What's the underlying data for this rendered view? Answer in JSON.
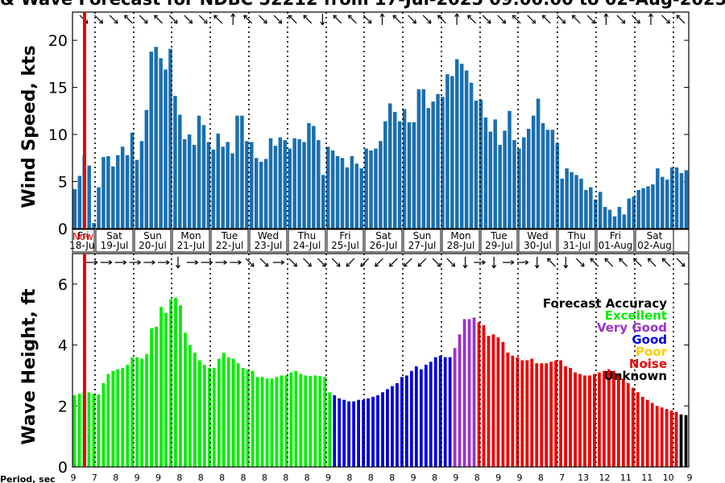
{
  "chart_data": [
    {
      "type": "bar",
      "title": "& Wave Forecast for NDBC 52212 from 17-Jul-2025 09:00:00 to 02-Aug-2025",
      "ylabel": "Wind Speed, kts",
      "ylim": [
        0,
        23
      ],
      "yticks": [
        0,
        5,
        10,
        15,
        20
      ],
      "grid": "vertical dotted lines at day boundaries",
      "now_label": "Now",
      "day_labels": [
        {
          "day": "Fri",
          "date": "18-Jul"
        },
        {
          "day": "Sat",
          "date": "19-Jul"
        },
        {
          "day": "Sun",
          "date": "20-Jul"
        },
        {
          "day": "Mon",
          "date": "21-Jul"
        },
        {
          "day": "Tue",
          "date": "22-Jul"
        },
        {
          "day": "Wed",
          "date": "23-Jul"
        },
        {
          "day": "Thu",
          "date": "24-Jul"
        },
        {
          "day": "Fri",
          "date": "25-Jul"
        },
        {
          "day": "Sat",
          "date": "26-Jul"
        },
        {
          "day": "Sun",
          "date": "27-Jul"
        },
        {
          "day": "Mon",
          "date": "28-Jul"
        },
        {
          "day": "Tue",
          "date": "29-Jul"
        },
        {
          "day": "Wed",
          "date": "30-Jul"
        },
        {
          "day": "Thu",
          "date": "31-Jul"
        },
        {
          "day": "Fri",
          "date": "01-Aug"
        },
        {
          "day": "Sat",
          "date": "02-Aug"
        }
      ],
      "values": [
        4.2,
        5.6,
        7.8,
        6.7,
        0.6,
        4.4,
        7.6,
        7.7,
        6.6,
        7.8,
        8.7,
        7.8,
        10.2,
        7.3,
        9.3,
        12.6,
        18.8,
        19.3,
        18.1,
        16.9,
        19.1,
        14.1,
        12.1,
        9.5,
        10.0,
        8.9,
        12.0,
        11.0,
        9.2,
        8.4,
        10.1,
        8.7,
        9.2,
        8.0,
        12.0,
        12.0,
        9.3,
        9.2,
        7.5,
        7.1,
        7.4,
        9.6,
        8.8,
        9.7,
        9.4,
        8.5,
        9.6,
        9.5,
        9.2,
        11.2,
        10.9,
        9.4,
        5.7,
        8.7,
        8.3,
        7.7,
        7.5,
        6.5,
        7.7,
        6.9,
        6.4,
        8.5,
        8.3,
        8.5,
        9.3,
        11.4,
        13.3,
        12.4,
        11.4,
        12.7,
        11.3,
        11.3,
        14.8,
        14.8,
        12.8,
        13.5,
        14.3,
        14.0,
        16.4,
        16.2,
        18.0,
        17.5,
        16.8,
        15.5,
        13.6,
        13.7,
        11.8,
        10.3,
        11.6,
        8.9,
        10.4,
        12.5,
        9.4,
        8.5,
        9.7,
        10.6,
        12.0,
        13.8,
        11.2,
        10.5,
        10.5,
        9.1,
        5.3,
        6.4,
        6.0,
        5.7,
        5.3,
        4.1,
        4.4,
        3.1,
        3.9,
        2.3,
        2.0,
        1.3,
        2.3,
        1.5,
        3.2,
        3.4,
        4.1,
        4.3,
        4.5,
        4.7,
        6.4,
        5.5,
        5.2,
        6.5,
        6.5,
        5.9,
        6.2
      ],
      "wind_arrow_dirs": [
        "SE",
        "SE",
        "SE",
        "NW",
        "SE",
        "NW",
        "SE",
        "SE",
        "SE",
        "NW",
        "N",
        "NW",
        "SE",
        "SE",
        "NW",
        "NW",
        "S",
        "NW",
        "NW",
        "SE",
        "N",
        "NW",
        "SE",
        "SE",
        "NW",
        "N",
        "NW",
        "SE",
        "SE",
        "NW",
        "SE",
        "NW",
        "SE",
        "NW",
        "SE",
        "N",
        "SE",
        "SE",
        "N",
        "SE",
        "NW"
      ]
    },
    {
      "type": "bar",
      "ylabel": "Wave Height, ft",
      "ylim": [
        0,
        7
      ],
      "yticks": [
        0,
        2,
        4,
        6
      ],
      "xlabel": "Period, sec",
      "period_labels": [
        "9",
        "7",
        "8",
        "9",
        "9",
        "8",
        "8",
        "8",
        "8",
        "8",
        "8",
        "8",
        "9",
        "8",
        "8",
        "8",
        "9",
        "8",
        "9",
        "8",
        "9",
        "9",
        "8",
        "7",
        "13",
        "12",
        "11",
        "11",
        "10",
        "9"
      ],
      "legend": {
        "title": "Forecast Accuracy",
        "entries": [
          {
            "label": "Excellent",
            "color": "#00ee00"
          },
          {
            "label": "Very Good",
            "color": "#9933cc"
          },
          {
            "label": "Good",
            "color": "#0000dd"
          },
          {
            "label": "Poor",
            "color": "#ffcc00"
          },
          {
            "label": "Noise",
            "color": "#ee0000"
          },
          {
            "label": "Unknown",
            "color": "#000000"
          }
        ]
      },
      "values": [
        2.35,
        2.4,
        2.45,
        2.45,
        2.4,
        2.38,
        2.75,
        3.05,
        3.15,
        3.2,
        3.25,
        3.35,
        3.6,
        3.6,
        3.55,
        3.7,
        4.55,
        4.6,
        5.25,
        5.05,
        5.5,
        5.55,
        5.3,
        4.4,
        4.0,
        3.75,
        3.5,
        3.35,
        3.25,
        3.25,
        3.55,
        3.75,
        3.6,
        3.55,
        3.4,
        3.25,
        3.2,
        3.15,
        2.95,
        2.95,
        2.9,
        2.9,
        2.95,
        3.0,
        3.0,
        3.1,
        3.15,
        3.05,
        3.0,
        2.98,
        3.0,
        2.98,
        2.95,
        2.45,
        2.35,
        2.25,
        2.2,
        2.15,
        2.15,
        2.2,
        2.2,
        2.25,
        2.3,
        2.35,
        2.45,
        2.55,
        2.65,
        2.75,
        2.95,
        3.0,
        3.15,
        3.3,
        3.2,
        3.35,
        3.45,
        3.6,
        3.65,
        3.6,
        3.6,
        3.9,
        4.35,
        4.85,
        4.85,
        4.9,
        4.75,
        4.65,
        4.3,
        4.35,
        4.25,
        4.1,
        3.75,
        3.65,
        3.6,
        3.5,
        3.5,
        3.55,
        3.4,
        3.4,
        3.4,
        3.45,
        3.5,
        3.5,
        3.3,
        3.25,
        3.1,
        3.05,
        3.0,
        3.0,
        3.05,
        3.1,
        3.15,
        3.2,
        3.15,
        3.05,
        2.9,
        2.75,
        2.6,
        2.45,
        2.3,
        2.2,
        2.1,
        2.0,
        1.95,
        1.9,
        1.85,
        1.8,
        1.72,
        1.7
      ],
      "colors": [
        "#00ee00",
        "#00ee00",
        "#00ee00",
        "#00ee00",
        "#00ee00",
        "#00ee00",
        "#00ee00",
        "#00ee00",
        "#00ee00",
        "#00ee00",
        "#00ee00",
        "#00ee00",
        "#00ee00",
        "#00ee00",
        "#00ee00",
        "#00ee00",
        "#00ee00",
        "#00ee00",
        "#00ee00",
        "#00ee00",
        "#00ee00",
        "#00ee00",
        "#00ee00",
        "#00ee00",
        "#00ee00",
        "#00ee00",
        "#00ee00",
        "#00ee00",
        "#00ee00",
        "#00ee00",
        "#00ee00",
        "#00ee00",
        "#00ee00",
        "#00ee00",
        "#00ee00",
        "#00ee00",
        "#00ee00",
        "#00ee00",
        "#00ee00",
        "#00ee00",
        "#00ee00",
        "#00ee00",
        "#00ee00",
        "#00ee00",
        "#00ee00",
        "#00ee00",
        "#00ee00",
        "#00ee00",
        "#00ee00",
        "#00ee00",
        "#00ee00",
        "#00ee00",
        "#00ee00",
        "#00ee00",
        "#0000dd",
        "#0000dd",
        "#0000dd",
        "#0000dd",
        "#0000dd",
        "#0000dd",
        "#0000dd",
        "#0000dd",
        "#0000dd",
        "#0000dd",
        "#0000dd",
        "#0000dd",
        "#0000dd",
        "#0000dd",
        "#0000dd",
        "#0000dd",
        "#0000dd",
        "#0000dd",
        "#0000dd",
        "#0000dd",
        "#0000dd",
        "#0000dd",
        "#0000dd",
        "#0000dd",
        "#0000dd",
        "#9933cc",
        "#9933cc",
        "#9933cc",
        "#9933cc",
        "#9933cc",
        "#ee0000",
        "#ee0000",
        "#ee0000",
        "#ee0000",
        "#ee0000",
        "#ee0000",
        "#ee0000",
        "#ee0000",
        "#ee0000",
        "#ee0000",
        "#ee0000",
        "#ee0000",
        "#ee0000",
        "#ee0000",
        "#ee0000",
        "#ee0000",
        "#ee0000",
        "#ee0000",
        "#ee0000",
        "#ee0000",
        "#ee0000",
        "#ee0000",
        "#ee0000",
        "#ee0000",
        "#ee0000",
        "#ee0000",
        "#ee0000",
        "#ee0000",
        "#ee0000",
        "#ee0000",
        "#ee0000",
        "#ee0000",
        "#ee0000",
        "#ee0000",
        "#ee0000",
        "#ee0000",
        "#ee0000",
        "#ee0000",
        "#ee0000",
        "#ee0000",
        "#ee0000",
        "#ee0000"
      ],
      "wave_arrow_dirs": [
        "E",
        "E",
        "E",
        "E",
        "E",
        "E",
        "S",
        "E",
        "E",
        "E",
        "E",
        "SE",
        "SE",
        "E",
        "SE",
        "SE",
        "SE",
        "SE",
        "SW",
        "SW",
        "SW",
        "SW",
        "SW",
        "SW",
        "SE",
        "SE",
        "S",
        "E",
        "S",
        "E",
        "E",
        "S",
        "NW",
        "S",
        "SE",
        "NW",
        "NW",
        "NW",
        "NW",
        "NW",
        "NW",
        "SE"
      ]
    }
  ],
  "colors": {
    "wind_bar": "#1a6faf",
    "now_line": "#ee0000"
  }
}
